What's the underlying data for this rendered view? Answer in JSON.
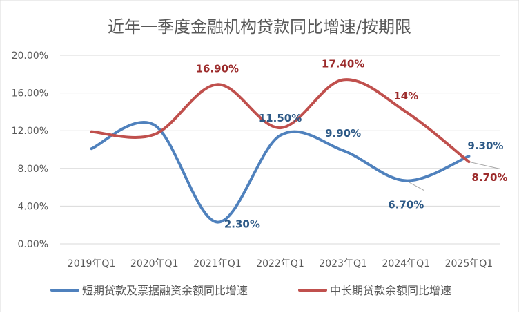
{
  "chart_data": {
    "type": "line",
    "title": "近年一季度金融机构贷款同比增速/按期限",
    "categories": [
      "2019年Q1",
      "2020年Q1",
      "2021年Q1",
      "2022年Q1",
      "2023年Q1",
      "2024年Q1",
      "2025年Q1"
    ],
    "y_ticks": [
      "0.00%",
      "4.00%",
      "8.00%",
      "12.00%",
      "16.00%",
      "20.00%"
    ],
    "ylim": [
      0,
      20
    ],
    "grid": true,
    "legend_position": "bottom",
    "series": [
      {
        "name": "短期贷款及票据融资余额同比增速",
        "color": "#4f81bd",
        "values": [
          10.1,
          12.6,
          2.3,
          11.5,
          9.9,
          6.7,
          9.3
        ],
        "labels": [
          "",
          "",
          "2.30%",
          "11.50%",
          "9.90%",
          "6.70%",
          "9.30%"
        ],
        "label_color": "#2e5a87"
      },
      {
        "name": "中长期贷款余额同比增速",
        "color": "#c0504d",
        "values": [
          11.9,
          11.6,
          16.9,
          12.3,
          17.4,
          14.0,
          8.7
        ],
        "labels": [
          "",
          "",
          "16.90%",
          "",
          "17.40%",
          "14%",
          "8.70%"
        ],
        "label_color": "#9c2b2b"
      }
    ]
  }
}
